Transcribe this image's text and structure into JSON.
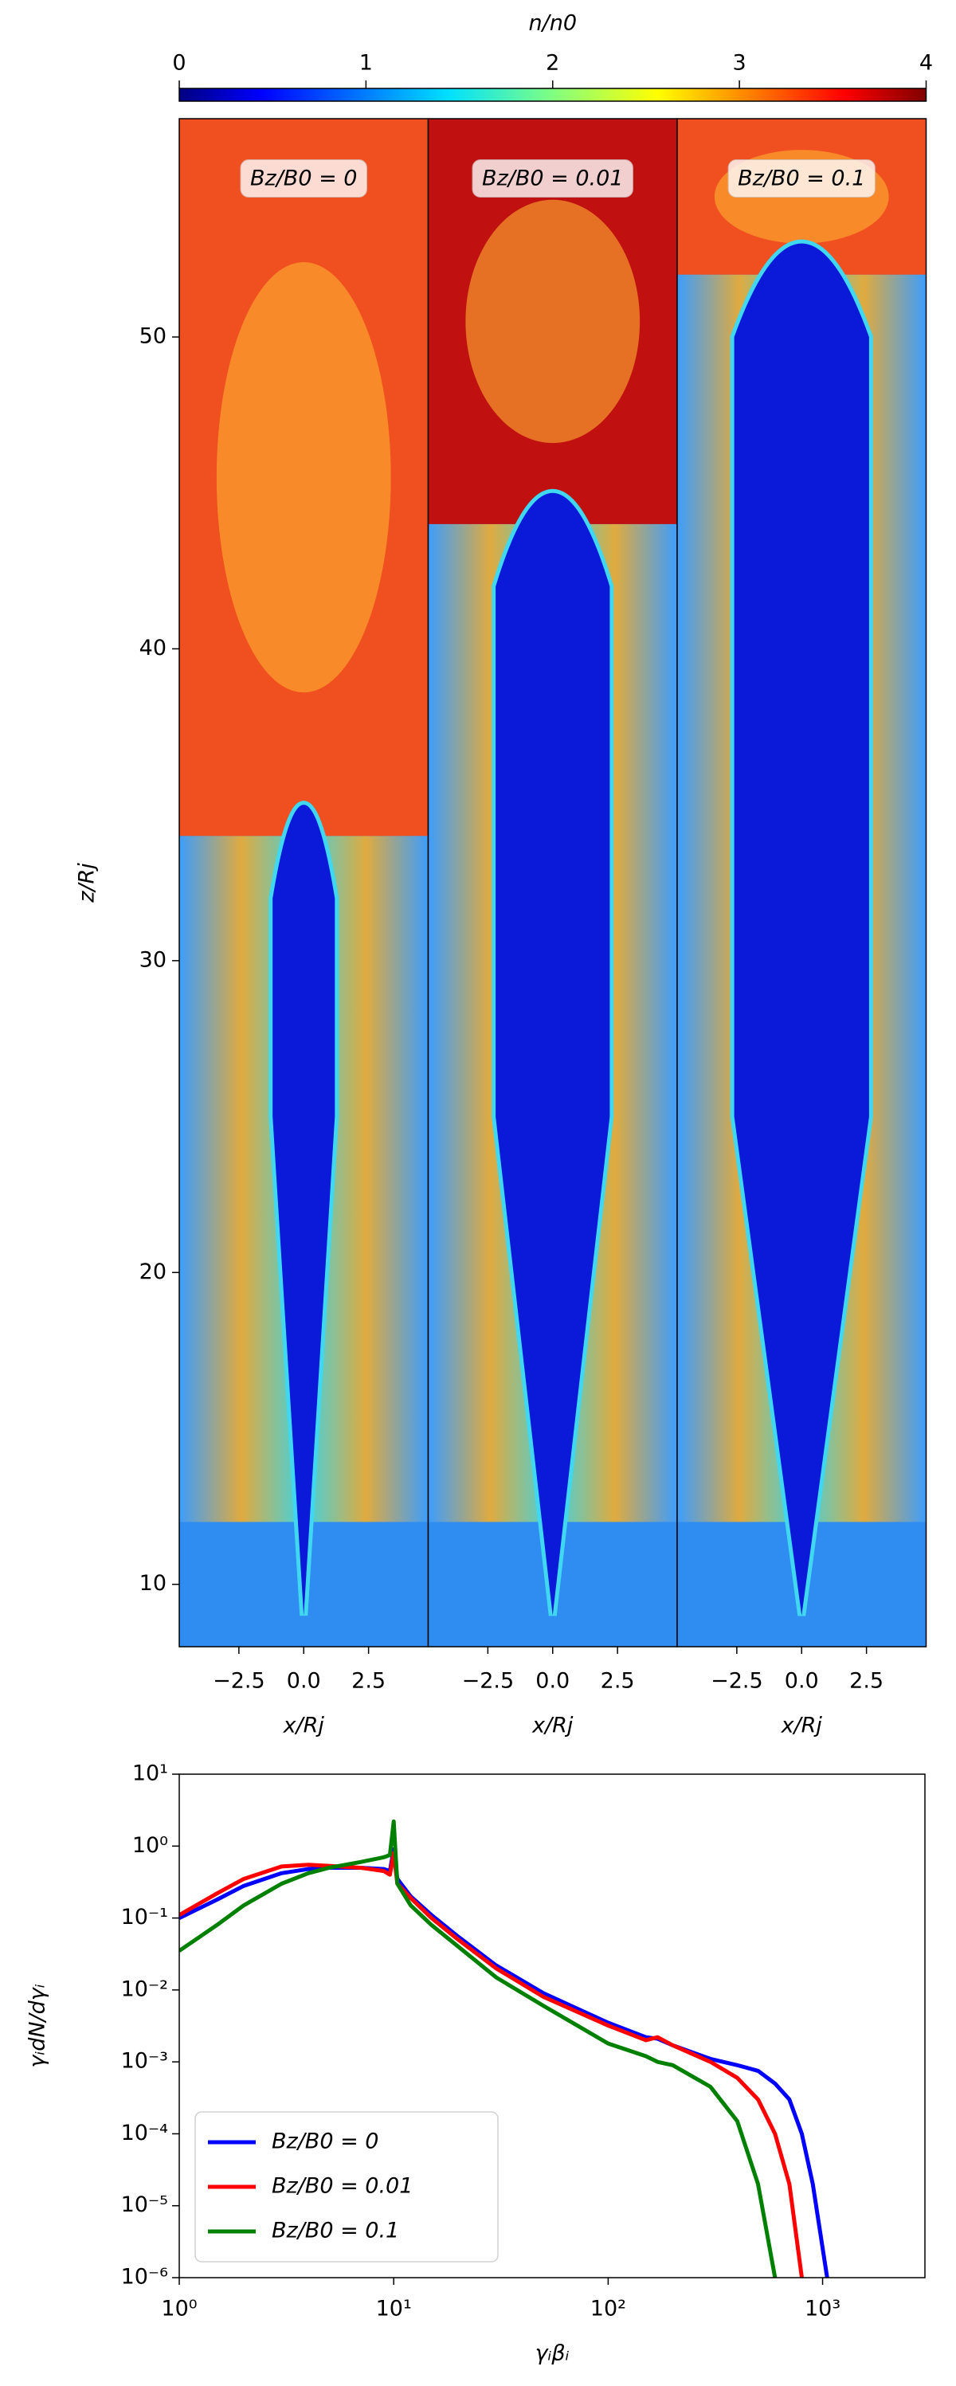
{
  "chart_data": [
    {
      "type": "heatmap",
      "colorbar_label": "n/n0",
      "clim": [
        0,
        4
      ],
      "cticks": [
        0,
        1,
        2,
        3,
        4
      ],
      "xlabel": "x/Rj",
      "ylabel": "z/Rj",
      "xlim": [
        -4.8,
        4.8
      ],
      "ylim": [
        8,
        57
      ],
      "xticks": [
        {
          "value": -2.5,
          "label": "−2.5"
        },
        {
          "value": 0,
          "label": "0.0"
        },
        {
          "value": 2.5,
          "label": "2.5"
        }
      ],
      "yticks": [
        10,
        20,
        30,
        40,
        50
      ],
      "panels": [
        {
          "title": "Bz/B0 = 0"
        },
        {
          "title": "Bz/B0 = 0.01"
        },
        {
          "title": "Bz/B0 = 0.1"
        }
      ]
    },
    {
      "type": "line",
      "log_x": true,
      "log_y": true,
      "xlabel": "γᵢβᵢ",
      "ylabel": "γᵢdN/dγᵢ",
      "xlim": [
        1,
        3000
      ],
      "ylim": [
        1e-06,
        10
      ],
      "xticks": [
        {
          "value": 1,
          "label": "10⁰"
        },
        {
          "value": 10,
          "label": "10¹"
        },
        {
          "value": 100,
          "label": "10²"
        },
        {
          "value": 1000,
          "label": "10³"
        }
      ],
      "yticks": [
        {
          "value": 1e-06,
          "label": "10⁻⁶"
        },
        {
          "value": 1e-05,
          "label": "10⁻⁵"
        },
        {
          "value": 0.0001,
          "label": "10⁻⁴"
        },
        {
          "value": 0.001,
          "label": "10⁻³"
        },
        {
          "value": 0.01,
          "label": "10⁻²"
        },
        {
          "value": 0.1,
          "label": "10⁻¹"
        },
        {
          "value": 1,
          "label": "10⁰"
        },
        {
          "value": 10,
          "label": "10¹"
        }
      ],
      "legend": "lower left",
      "x": [
        1,
        1.5,
        2,
        3,
        4,
        5,
        7,
        9,
        9.6,
        10,
        10.4,
        12,
        15,
        20,
        30,
        50,
        100,
        150,
        170,
        200,
        300,
        400,
        500,
        600,
        700,
        800,
        900,
        1050
      ],
      "series": [
        {
          "name": "Bz/B0 = 0",
          "color": "#0000ff",
          "values": [
            0.1,
            0.18,
            0.28,
            0.42,
            0.48,
            0.5,
            0.5,
            0.48,
            0.45,
            0.9,
            0.35,
            0.2,
            0.11,
            0.055,
            0.022,
            0.009,
            0.0035,
            0.0022,
            0.0021,
            0.0017,
            0.0011,
            0.0009,
            0.00075,
            0.0005,
            0.0003,
            0.0001,
            2e-05,
            1e-06
          ]
        },
        {
          "name": "Bz/B0 = 0.01",
          "color": "#ff0000",
          "values": [
            0.11,
            0.22,
            0.35,
            0.52,
            0.55,
            0.53,
            0.5,
            0.45,
            0.4,
            0.8,
            0.3,
            0.19,
            0.1,
            0.05,
            0.02,
            0.008,
            0.0032,
            0.002,
            0.0022,
            0.0017,
            0.001,
            0.0006,
            0.0003,
            0.0001,
            2e-05,
            1e-06,
            null,
            null
          ]
        },
        {
          "name": "Bz/B0 = 0.1",
          "color": "#008000",
          "values": [
            0.035,
            0.08,
            0.15,
            0.3,
            0.42,
            0.5,
            0.6,
            0.7,
            0.75,
            2.2,
            0.3,
            0.15,
            0.08,
            0.04,
            0.015,
            0.006,
            0.0018,
            0.0012,
            0.001,
            0.0009,
            0.00045,
            0.00015,
            2e-05,
            1e-06,
            null,
            null,
            null,
            null
          ]
        }
      ]
    }
  ]
}
